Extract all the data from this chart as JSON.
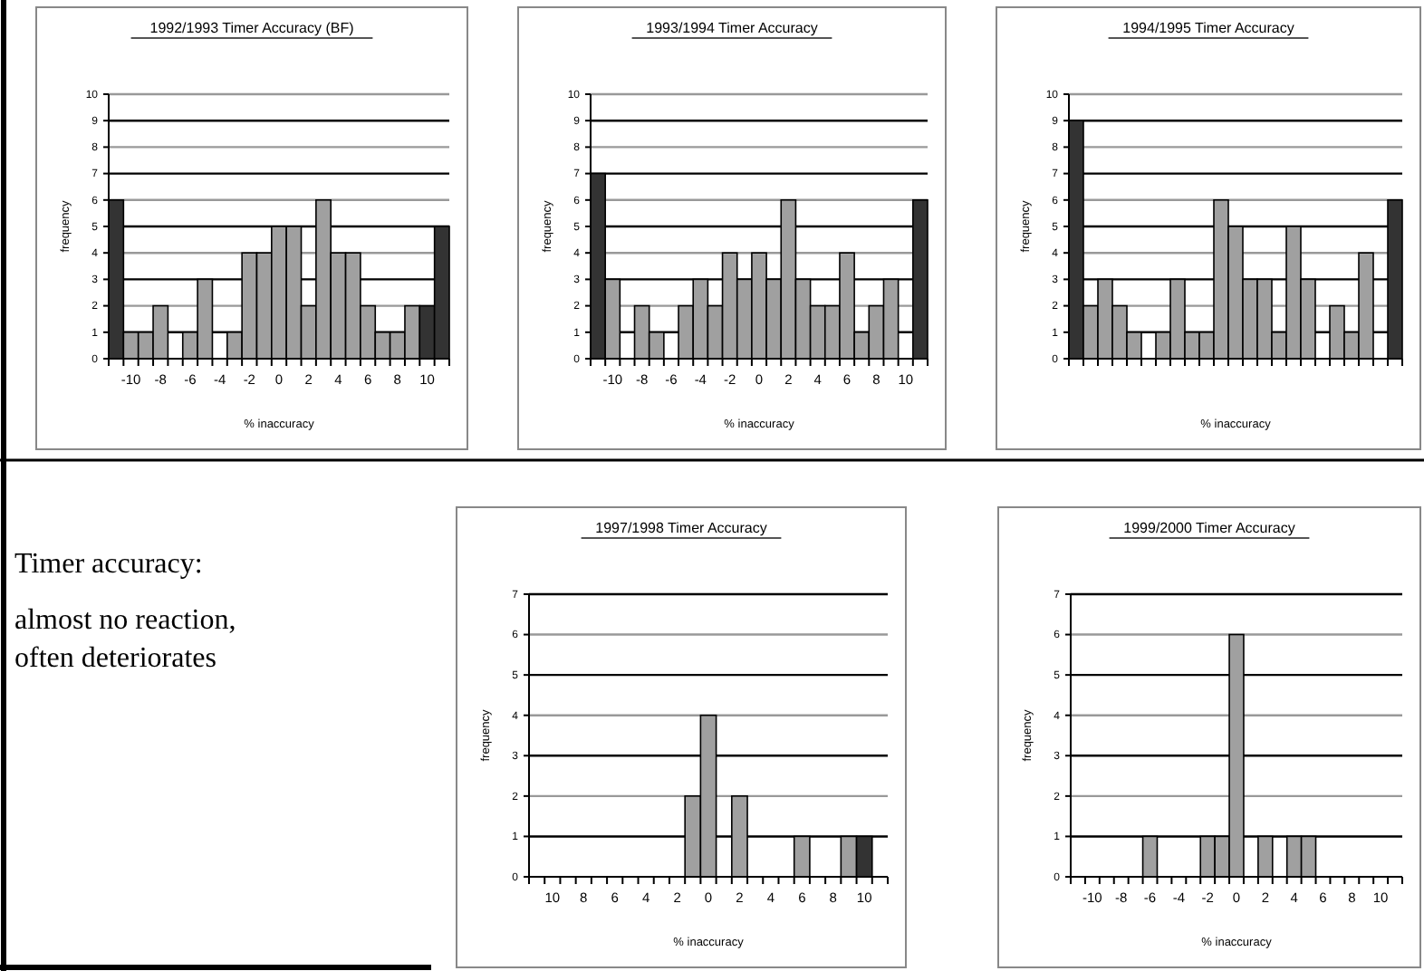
{
  "chart_data": [
    {
      "type": "bar",
      "title": "1992/1993 Timer Accuracy (BF)",
      "xlabel": "% inaccuracy",
      "ylabel": "frequency",
      "categories": [
        null,
        "-10",
        null,
        "-8",
        null,
        "-6",
        null,
        "-4",
        null,
        "-2",
        null,
        "0",
        null,
        "2",
        null,
        "4",
        null,
        "6",
        null,
        "8",
        null,
        "10",
        null
      ],
      "values": [
        6,
        1,
        1,
        2,
        0,
        1,
        3,
        0,
        1,
        4,
        4,
        5,
        5,
        2,
        6,
        4,
        4,
        2,
        1,
        1,
        2,
        2,
        5
      ],
      "colors": [
        "#333333",
        "#a0a0a0",
        "#a0a0a0",
        "#a0a0a0",
        "#a0a0a0",
        "#a0a0a0",
        "#a0a0a0",
        "#a0a0a0",
        "#a0a0a0",
        "#a0a0a0",
        "#a0a0a0",
        "#a0a0a0",
        "#a0a0a0",
        "#a0a0a0",
        "#a0a0a0",
        "#a0a0a0",
        "#a0a0a0",
        "#a0a0a0",
        "#a0a0a0",
        "#a0a0a0",
        "#a0a0a0",
        "#333333",
        "#333333"
      ],
      "ylim": [
        0,
        10
      ],
      "yticks": [
        0,
        1,
        2,
        3,
        4,
        5,
        6,
        7,
        8,
        9,
        10
      ],
      "grid": "y"
    },
    {
      "type": "bar",
      "title": "1993/1994 Timer Accuracy",
      "xlabel": "% inaccuracy",
      "ylabel": "frequency",
      "categories": [
        null,
        "-10",
        null,
        "-8",
        null,
        "-6",
        null,
        "-4",
        null,
        "-2",
        null,
        "0",
        null,
        "2",
        null,
        "4",
        null,
        "6",
        null,
        "8",
        null,
        "10",
        null
      ],
      "values": [
        7,
        3,
        0,
        2,
        1,
        0,
        2,
        3,
        2,
        4,
        3,
        4,
        3,
        6,
        3,
        2,
        2,
        4,
        1,
        2,
        3,
        0,
        6
      ],
      "colors": [
        "#333333",
        "#a0a0a0",
        "#a0a0a0",
        "#a0a0a0",
        "#a0a0a0",
        "#a0a0a0",
        "#a0a0a0",
        "#a0a0a0",
        "#a0a0a0",
        "#a0a0a0",
        "#a0a0a0",
        "#a0a0a0",
        "#a0a0a0",
        "#a0a0a0",
        "#a0a0a0",
        "#a0a0a0",
        "#a0a0a0",
        "#a0a0a0",
        "#a0a0a0",
        "#a0a0a0",
        "#a0a0a0",
        "#a0a0a0",
        "#333333"
      ],
      "ylim": [
        0,
        10
      ],
      "yticks": [
        0,
        1,
        2,
        3,
        4,
        5,
        6,
        7,
        8,
        9,
        10
      ],
      "grid": "y"
    },
    {
      "type": "bar",
      "title": "1994/1995 Timer Accuracy",
      "xlabel": "% inaccuracy",
      "ylabel": "frequency",
      "categories": [
        null,
        null,
        null,
        null,
        null,
        null,
        null,
        null,
        null,
        null,
        null,
        null,
        null,
        null,
        null,
        null,
        null,
        null,
        null,
        null,
        null,
        null,
        null
      ],
      "values": [
        9,
        2,
        3,
        2,
        1,
        0,
        1,
        3,
        1,
        1,
        6,
        5,
        3,
        3,
        1,
        5,
        3,
        0,
        2,
        1,
        4,
        0,
        6
      ],
      "colors": [
        "#333333",
        "#a0a0a0",
        "#a0a0a0",
        "#a0a0a0",
        "#a0a0a0",
        "#a0a0a0",
        "#a0a0a0",
        "#a0a0a0",
        "#a0a0a0",
        "#a0a0a0",
        "#a0a0a0",
        "#a0a0a0",
        "#a0a0a0",
        "#a0a0a0",
        "#a0a0a0",
        "#a0a0a0",
        "#a0a0a0",
        "#a0a0a0",
        "#a0a0a0",
        "#a0a0a0",
        "#a0a0a0",
        "#a0a0a0",
        "#333333"
      ],
      "ylim": [
        0,
        10
      ],
      "yticks": [
        0,
        1,
        2,
        3,
        4,
        5,
        6,
        7,
        8,
        9,
        10
      ],
      "grid": "y",
      "tick_labels": "y"
    },
    {
      "type": "other",
      "annotations": [
        "Timer accuracy:",
        "almost no reaction, often deteriorates"
      ]
    },
    {
      "type": "bar",
      "title": "1997/1998 Timer Accuracy",
      "xlabel": "% inaccuracy",
      "ylabel": "frequency",
      "categories": [
        null,
        "10",
        null,
        "8",
        null,
        "6",
        null,
        "4",
        null,
        "2",
        null,
        "0",
        null,
        "2",
        null,
        "4",
        null,
        "6",
        null,
        "8",
        null,
        "10",
        null
      ],
      "values": [
        0,
        0,
        0,
        0,
        0,
        0,
        0,
        0,
        0,
        0,
        2,
        4,
        0,
        2,
        0,
        0,
        0,
        1,
        0,
        0,
        1,
        1,
        0
      ],
      "colors": [
        "#a0a0a0",
        "#a0a0a0",
        "#a0a0a0",
        "#a0a0a0",
        "#a0a0a0",
        "#a0a0a0",
        "#a0a0a0",
        "#a0a0a0",
        "#a0a0a0",
        "#a0a0a0",
        "#a0a0a0",
        "#a0a0a0",
        "#a0a0a0",
        "#a0a0a0",
        "#a0a0a0",
        "#a0a0a0",
        "#a0a0a0",
        "#a0a0a0",
        "#a0a0a0",
        "#a0a0a0",
        "#a0a0a0",
        "#333333",
        "#a0a0a0"
      ],
      "ylim": [
        0,
        7
      ],
      "yticks": [
        0,
        1,
        2,
        3,
        4,
        5,
        6,
        7
      ],
      "grid": "y"
    },
    {
      "type": "bar",
      "title": "1999/2000 Timer Accuracy",
      "xlabel": "% inaccuracy",
      "ylabel": "frequency",
      "categories": [
        null,
        "-10",
        null,
        "-8",
        null,
        "-6",
        null,
        "-4",
        null,
        "-2",
        null,
        "0",
        null,
        "2",
        null,
        "4",
        null,
        "6",
        null,
        "8",
        null,
        "10",
        null
      ],
      "values": [
        0,
        0,
        0,
        0,
        0,
        1,
        0,
        0,
        0,
        1,
        1,
        6,
        0,
        1,
        0,
        1,
        1,
        0,
        0,
        0,
        0,
        0,
        0
      ],
      "color": "#a0a0a0",
      "ylim": [
        0,
        7
      ],
      "yticks": [
        0,
        1,
        2,
        3,
        4,
        5,
        6,
        7
      ],
      "grid": "y"
    }
  ]
}
